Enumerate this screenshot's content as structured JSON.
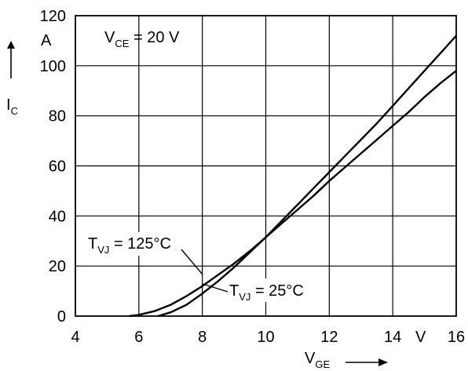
{
  "chart_data": {
    "type": "line",
    "x": [
      5.7,
      6,
      6.5,
      7,
      7.5,
      8,
      8.5,
      9,
      9.5,
      10,
      10.5,
      11,
      11.5,
      12,
      12.5,
      13,
      13.5,
      14,
      14.5,
      15,
      15.5,
      16
    ],
    "series": [
      {
        "name": "T_VJ = 125°C",
        "x": [
          5.7,
          6,
          6.5,
          7,
          7.5,
          8,
          8.5,
          9,
          9.5,
          10,
          10.5,
          11,
          11.5,
          12,
          12.5,
          13,
          13.5,
          14,
          14.5,
          15,
          15.5,
          16
        ],
        "values": [
          0,
          0.5,
          2,
          4.5,
          8,
          12,
          16.5,
          21,
          26,
          31.5,
          37,
          42.5,
          48,
          54,
          59.5,
          65,
          70.5,
          76,
          81.5,
          87.5,
          93,
          98
        ]
      },
      {
        "name": "T_VJ = 25°C",
        "x": [
          6.6,
          7,
          7.5,
          8,
          8.5,
          9,
          9.5,
          10,
          10.5,
          11,
          11.5,
          12,
          12.5,
          13,
          13.5,
          14,
          14.5,
          15,
          15.5,
          16
        ],
        "values": [
          0,
          1.5,
          4.5,
          9,
          14,
          19.5,
          25.5,
          31.5,
          38,
          44.5,
          51,
          57.5,
          64,
          70.5,
          77,
          84,
          91,
          98,
          105,
          112
        ]
      }
    ],
    "xlim": [
      4,
      16
    ],
    "ylim": [
      0,
      120
    ],
    "x_ticks": [
      "4",
      "6",
      "8",
      "10",
      "12",
      "14",
      "16"
    ],
    "y_ticks": [
      "0",
      "20",
      "40",
      "60",
      "80",
      "100",
      "120"
    ],
    "x_unit": "V",
    "y_unit": "A",
    "xlabel": "V",
    "xlabel_sub": "GE",
    "ylabel": "I",
    "ylabel_sub": "C",
    "condition": "V",
    "condition_sub": "CE",
    "condition_value": " = 20 V",
    "annotations": [
      {
        "main": "T",
        "sub": "VJ",
        "rest": " = 125°C"
      },
      {
        "main": "T",
        "sub": "VJ",
        "rest": " = 25°C"
      }
    ],
    "grid": true
  }
}
